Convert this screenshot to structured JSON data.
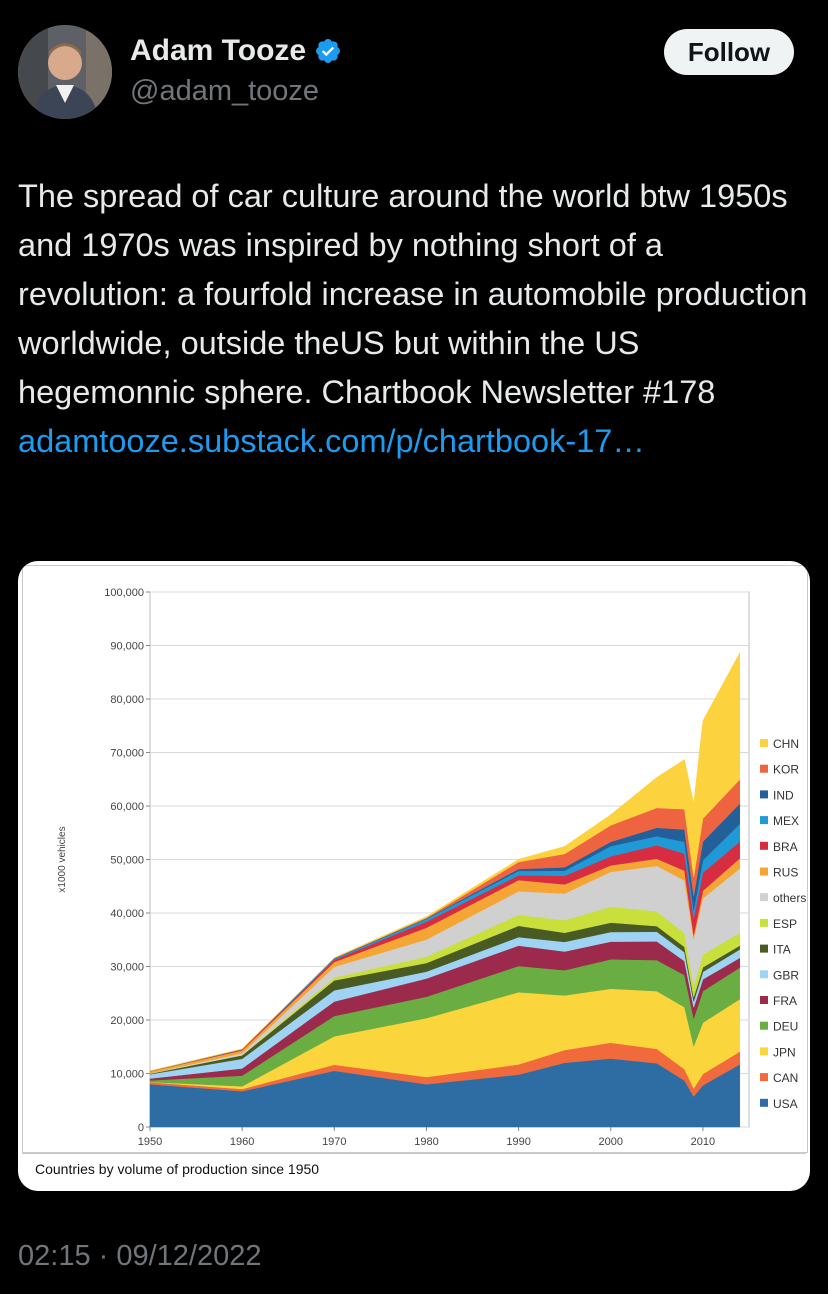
{
  "author": {
    "name": "Adam Tooze",
    "handle": "@adam_tooze",
    "verified_icon": "verified-badge-icon"
  },
  "follow_label": "Follow",
  "tweet": {
    "text": "The spread of car culture around the world btw 1950s and 1970s was inspired by nothing short of a revolution: a fourfold increase in automobile production worldwide, outside theUS but within the US hegemonnic sphere. Chartbook Newsletter #178",
    "link": "adamtooze.substack.com/p/chartbook-17…"
  },
  "timestamp": "02:15 · 09/12/2022",
  "colors": {
    "link": "#1d9bf0",
    "verified": "#1d9bf0"
  },
  "chart_data": {
    "type": "area",
    "stacked": true,
    "title": "",
    "caption": "Countries by volume of production since 1950",
    "ylabel": "x1000 vehicles",
    "xlabel": "",
    "ylim": [
      0,
      100000
    ],
    "xlim": [
      1950,
      2015
    ],
    "y_ticks": [
      "0",
      "10,000",
      "20,000",
      "30,000",
      "40,000",
      "50,000",
      "60,000",
      "70,000",
      "80,000",
      "90,000",
      "100,000"
    ],
    "x_ticks": [
      "1950",
      "1960",
      "1970",
      "1980",
      "1990",
      "2000",
      "2010"
    ],
    "grid": true,
    "legend_position": "right",
    "x": [
      1950,
      1960,
      1970,
      1980,
      1990,
      1995,
      2000,
      2005,
      2008,
      2009,
      2010,
      2014
    ],
    "series": [
      {
        "name": "USA",
        "color": "#2e6da4",
        "values": [
          8000,
          6700,
          10500,
          8000,
          9800,
          12000,
          12800,
          11900,
          8700,
          5700,
          7800,
          11700
        ]
      },
      {
        "name": "CAN",
        "color": "#f06a3c",
        "values": [
          380,
          400,
          1150,
          1350,
          1900,
          2400,
          2950,
          2700,
          2100,
          1500,
          2100,
          2400
        ]
      },
      {
        "name": "JPN",
        "color": "#fbd53c",
        "values": [
          30,
          500,
          5300,
          11000,
          13500,
          10200,
          10100,
          10800,
          11600,
          7900,
          9600,
          9800
        ]
      },
      {
        "name": "DEU",
        "color": "#6aae43",
        "values": [
          300,
          2000,
          3800,
          4000,
          4900,
          4700,
          5500,
          5800,
          6000,
          5200,
          5900,
          5900
        ]
      },
      {
        "name": "FRA",
        "color": "#9c2a4c",
        "values": [
          360,
          1350,
          2700,
          3400,
          3800,
          3500,
          3300,
          3500,
          2600,
          2050,
          2200,
          1800
        ]
      },
      {
        "name": "GBR",
        "color": "#9fd3f3",
        "values": [
          780,
          1800,
          2100,
          1300,
          1600,
          1800,
          1800,
          1800,
          1650,
          1100,
          1400,
          1600
        ]
      },
      {
        "name": "ITA",
        "color": "#4a5a23",
        "values": [
          130,
          650,
          1850,
          1600,
          2100,
          1700,
          1750,
          1050,
          1000,
          850,
          850,
          700
        ]
      },
      {
        "name": "ESP",
        "color": "#c8df3c",
        "values": [
          0,
          50,
          550,
          1200,
          2050,
          2350,
          3000,
          2750,
          2550,
          2150,
          2400,
          2400
        ]
      },
      {
        "name": "others",
        "color": "#d0d0d0",
        "values": [
          70,
          350,
          2000,
          3200,
          4400,
          5000,
          6500,
          8500,
          9900,
          8700,
          10500,
          12000
        ]
      },
      {
        "name": "RUS",
        "color": "#f5a533",
        "values": [
          360,
          520,
          900,
          2200,
          2100,
          1700,
          1200,
          1350,
          1800,
          700,
          1400,
          1900
        ]
      },
      {
        "name": "BRA",
        "color": "#d72d40",
        "values": [
          0,
          150,
          420,
          1150,
          900,
          1600,
          1700,
          2500,
          3200,
          3200,
          3400,
          3150
        ]
      },
      {
        "name": "MEX",
        "color": "#1f9ad6",
        "values": [
          30,
          50,
          190,
          490,
          820,
          950,
          1900,
          1700,
          2200,
          1500,
          2300,
          3300
        ]
      },
      {
        "name": "IND",
        "color": "#23609a",
        "values": [
          20,
          50,
          80,
          110,
          360,
          640,
          800,
          1600,
          2300,
          2600,
          3500,
          3800
        ]
      },
      {
        "name": "KOR",
        "color": "#ef6440",
        "values": [
          0,
          0,
          30,
          120,
          1300,
          2500,
          3100,
          3700,
          3800,
          3500,
          4300,
          4500
        ]
      },
      {
        "name": "CHN",
        "color": "#fcd23e",
        "values": [
          0,
          20,
          90,
          220,
          500,
          1400,
          2000,
          5700,
          9300,
          13800,
          18300,
          23700
        ]
      }
    ]
  }
}
